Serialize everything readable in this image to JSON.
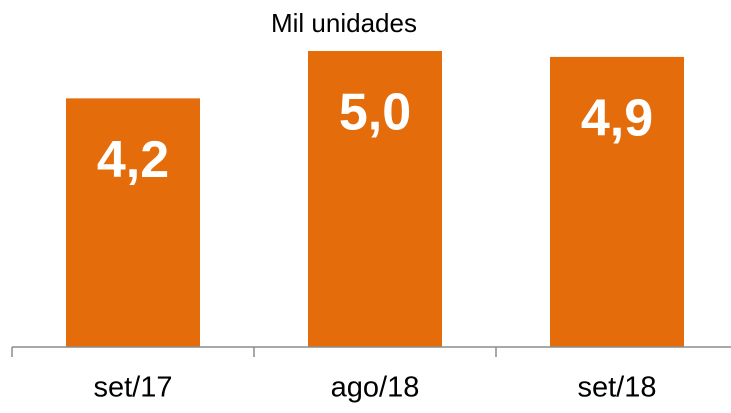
{
  "chart_data": {
    "type": "bar",
    "title": "Mil unidades",
    "categories": [
      "set/17",
      "ago/18",
      "set/18"
    ],
    "values": [
      4.2,
      5.0,
      4.9
    ],
    "value_labels": [
      "4,2",
      "5,0",
      "4,9"
    ],
    "color": "#e46c0a",
    "ylim": [
      0,
      5.0
    ]
  }
}
